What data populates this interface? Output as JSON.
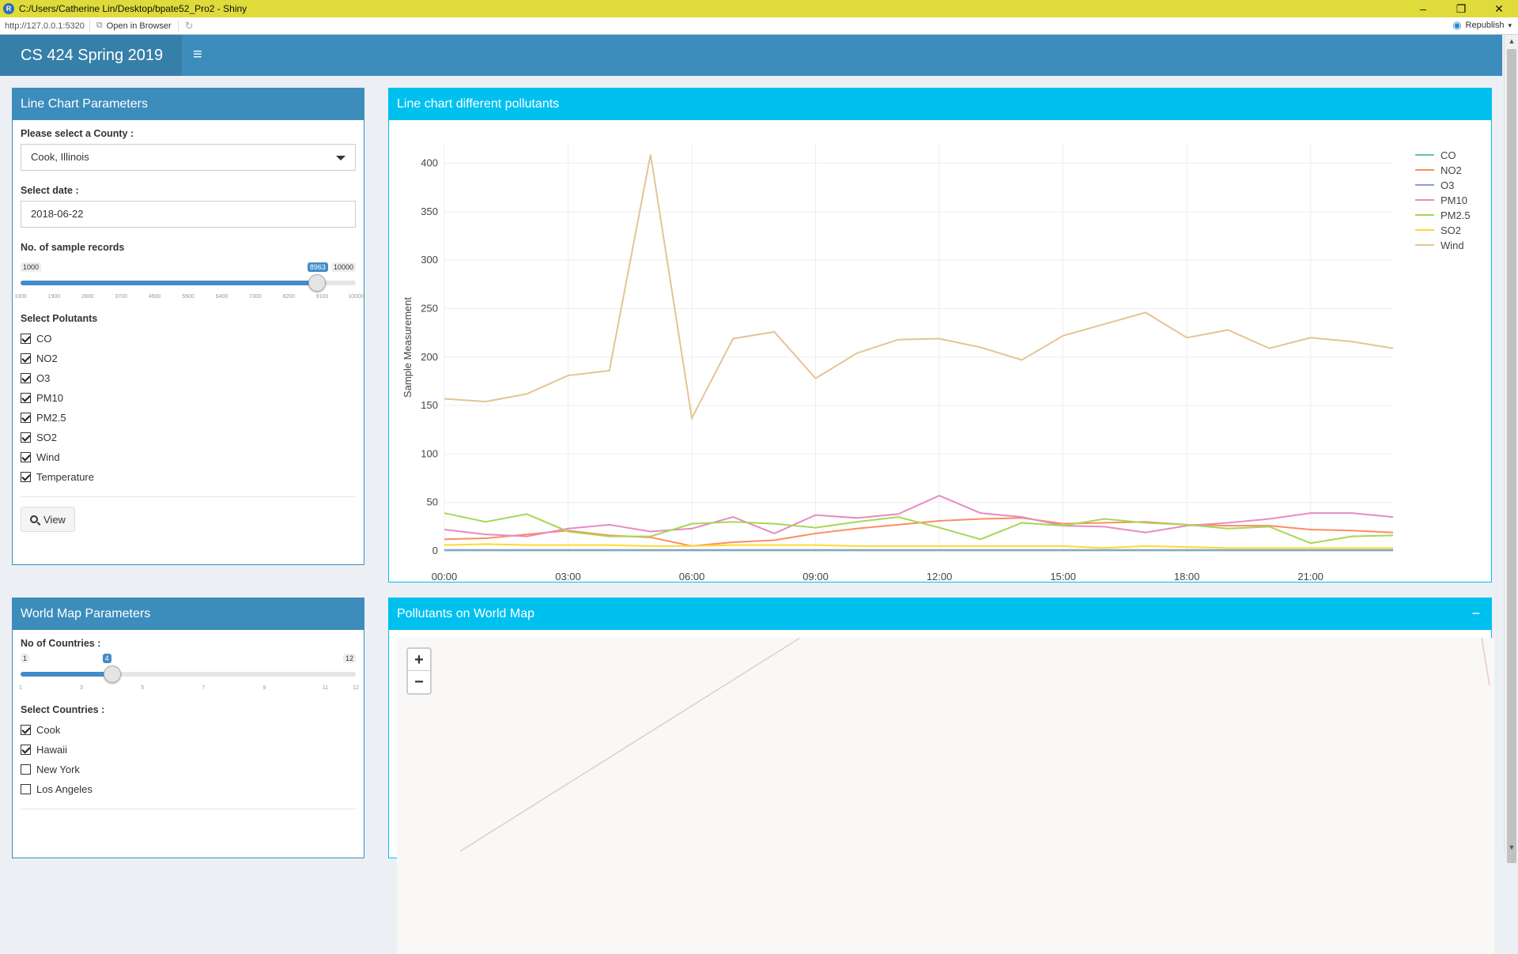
{
  "window": {
    "title": "C:/Users/Catherine Lin/Desktop/bpate52_Pro2 - Shiny",
    "url": "http://127.0.0.1:5320",
    "open_in_browser": "Open in Browser",
    "republish": "Republish"
  },
  "header": {
    "title": "CS 424 Spring 2019"
  },
  "line_params": {
    "title": "Line Chart Parameters",
    "county_label": "Please select a County :",
    "county_value": "Cook, Illinois",
    "date_label": "Select date :",
    "date_value": "2018-06-22",
    "records_label": "No. of sample records",
    "records_min": "1000",
    "records_max": "10000",
    "records_value": "8963",
    "records_fraction": 0.884,
    "records_ticks": [
      "1000",
      "1900",
      "2800",
      "3700",
      "4600",
      "5500",
      "6400",
      "7300",
      "8200",
      "9100",
      "10000"
    ],
    "pollutants_label": "Select Polutants",
    "pollutants": [
      {
        "label": "CO",
        "checked": true
      },
      {
        "label": "NO2",
        "checked": true
      },
      {
        "label": "O3",
        "checked": true
      },
      {
        "label": "PM10",
        "checked": true
      },
      {
        "label": "PM2.5",
        "checked": true
      },
      {
        "label": "SO2",
        "checked": true
      },
      {
        "label": "Wind",
        "checked": true
      },
      {
        "label": "Temperature",
        "checked": true
      }
    ],
    "view_button": "View"
  },
  "map_params": {
    "title": "World Map Parameters",
    "countries_label": "No of Countries :",
    "countries_min": "1",
    "countries_max": "12",
    "countries_value": "4",
    "countries_fraction": 0.2727,
    "countries_ticks": [
      "1",
      "3",
      "5",
      "7",
      "9",
      "11",
      "12"
    ],
    "select_label": "Select Countries :",
    "countries": [
      {
        "label": "Cook",
        "checked": true
      },
      {
        "label": "Hawaii",
        "checked": true
      },
      {
        "label": "New York",
        "checked": false
      },
      {
        "label": "Los Angeles",
        "checked": false
      }
    ]
  },
  "line_box": {
    "title": "Line chart different pollutants"
  },
  "map_box": {
    "title": "Pollutants on World Map",
    "zoom_in": "+",
    "zoom_out": "−"
  },
  "chart_data": {
    "type": "line",
    "ylabel": "Sample Measurement",
    "ylim": [
      0,
      420
    ],
    "yticks": [
      0,
      50,
      100,
      150,
      200,
      250,
      300,
      350,
      400
    ],
    "x": [
      "00:00",
      "01:00",
      "02:00",
      "03:00",
      "04:00",
      "05:00",
      "06:00",
      "07:00",
      "08:00",
      "09:00",
      "10:00",
      "11:00",
      "12:00",
      "13:00",
      "14:00",
      "15:00",
      "16:00",
      "17:00",
      "18:00",
      "19:00",
      "20:00",
      "21:00",
      "22:00",
      "23:00"
    ],
    "xticks": [
      "00:00",
      "03:00",
      "06:00",
      "09:00",
      "12:00",
      "15:00",
      "18:00",
      "21:00"
    ],
    "legend_position": "top-right",
    "series": [
      {
        "name": "CO",
        "color": "#66c2a5",
        "values": [
          0.5,
          0.5,
          0.5,
          0.5,
          0.5,
          0.5,
          0.5,
          0.5,
          0.5,
          0.5,
          0.5,
          0.5,
          0.5,
          0.5,
          0.5,
          0.5,
          0.5,
          0.5,
          0.5,
          0.5,
          0.5,
          0.5,
          0.5,
          0.5
        ]
      },
      {
        "name": "NO2",
        "color": "#fc8d62",
        "values": [
          12,
          13,
          17,
          21,
          16,
          14,
          5,
          9,
          11,
          18,
          23,
          27,
          31,
          33,
          34,
          28,
          29,
          30,
          27,
          26,
          26,
          22,
          21,
          19
        ]
      },
      {
        "name": "O3",
        "color": "#8da0cb",
        "values": [
          1,
          1,
          1,
          1,
          1,
          1,
          1,
          1,
          1,
          1,
          1,
          1,
          1,
          1,
          1,
          1,
          1,
          1,
          1,
          1,
          1,
          1,
          1,
          1
        ]
      },
      {
        "name": "PM10",
        "color": "#e78ac3",
        "values": [
          22,
          17,
          15,
          23,
          27,
          20,
          23,
          35,
          18,
          37,
          34,
          38,
          57,
          39,
          35,
          26,
          25,
          19,
          26,
          29,
          33,
          39,
          39,
          35
        ]
      },
      {
        "name": "PM2.5",
        "color": "#a6d854",
        "values": [
          39,
          30,
          38,
          20,
          15,
          15,
          28,
          30,
          28,
          24,
          30,
          35,
          24,
          12,
          29,
          26,
          33,
          29,
          27,
          23,
          25,
          8,
          15,
          16
        ]
      },
      {
        "name": "SO2",
        "color": "#ffd92f",
        "values": [
          6,
          7,
          6,
          6,
          6,
          5,
          5,
          6,
          6,
          6,
          5,
          5,
          5,
          5,
          5,
          5,
          3,
          5,
          4,
          3,
          3,
          3,
          3,
          3
        ]
      },
      {
        "name": "Wind",
        "color": "#e5c494",
        "values": [
          157,
          154,
          162,
          181,
          186,
          409,
          137,
          219,
          226,
          178,
          204,
          218,
          219,
          210,
          197,
          222,
          234,
          246,
          220,
          228,
          209,
          220,
          216,
          209
        ]
      }
    ]
  }
}
